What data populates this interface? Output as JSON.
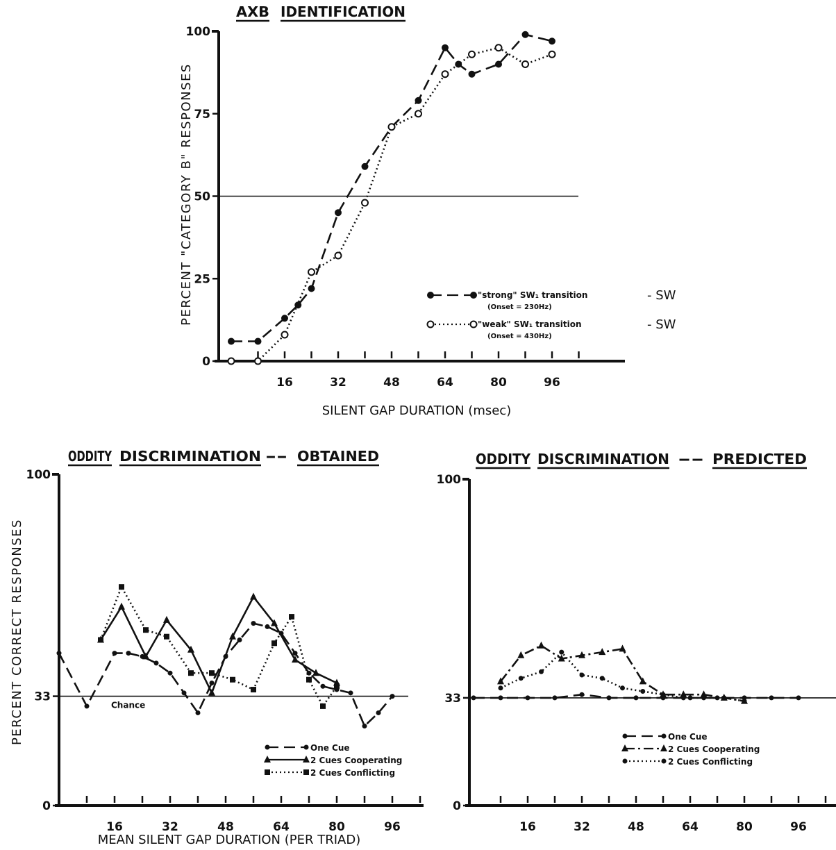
{
  "chart_data": [
    {
      "id": "top",
      "type": "line",
      "title_words": [
        "AXB",
        "IDENTIFICATION"
      ],
      "xlabel": "SILENT GAP DURATION (msec)",
      "ylabel": "PERCENT \"CATEGORY B\" RESPONSES",
      "xlim": [
        0,
        110
      ],
      "ylim": [
        0,
        100
      ],
      "x_ticks": [
        16,
        32,
        48,
        64,
        80,
        96
      ],
      "y_ticks": [
        0,
        25,
        50,
        75,
        100
      ],
      "reference_line": 50,
      "series": [
        {
          "name": "\"strong\" SW₁ transition - SW",
          "name_main": "\"strong\" SW₁ transition",
          "name_suffix": "- SW",
          "sub": "(Onset = 230Hz)",
          "style": "dashed",
          "marker": "filled-circle",
          "x": [
            0,
            8,
            16,
            20,
            24,
            32,
            40,
            48,
            56,
            64,
            68,
            72,
            80,
            88,
            96
          ],
          "y": [
            6,
            6,
            13,
            17,
            22,
            45,
            59,
            71,
            79,
            95,
            90,
            87,
            90,
            99,
            97
          ]
        },
        {
          "name": "\"weak\" SW₁ transition - SW",
          "name_main": "\"weak\" SW₁ transition",
          "name_suffix": "- SW",
          "sub": "(Onset = 430Hz)",
          "style": "dotted",
          "marker": "open-circle",
          "x": [
            0,
            8,
            16,
            24,
            32,
            40,
            48,
            56,
            64,
            72,
            80,
            88,
            96
          ],
          "y": [
            0,
            0,
            8,
            27,
            32,
            48,
            71,
            75,
            87,
            93,
            95,
            90,
            93
          ]
        }
      ]
    },
    {
      "id": "bottom-left",
      "type": "line",
      "title_words": [
        "ODDITY",
        "DISCRIMINATION",
        "--",
        "OBTAINED"
      ],
      "xlabel": "MEAN SILENT GAP DURATION (PER TRIAD)",
      "ylabel": "PERCENT CORRECT RESPONSES",
      "xlim": [
        0,
        110
      ],
      "ylim": [
        0,
        100
      ],
      "x_ticks": [
        16,
        32,
        48,
        64,
        80,
        96
      ],
      "y_ticks": [
        0,
        33,
        100
      ],
      "reference_line": 33,
      "reference_label": "Chance",
      "series": [
        {
          "name": "One Cue",
          "style": "dashed",
          "marker": "dot",
          "x": [
            0,
            8,
            16,
            20,
            24,
            28,
            32,
            36,
            40,
            44,
            48,
            52,
            56,
            60,
            64,
            68,
            72,
            76,
            80,
            84,
            88,
            92,
            96
          ],
          "y": [
            46,
            30,
            46,
            46,
            45,
            43,
            40,
            34,
            28,
            37,
            45,
            50,
            55,
            54,
            52,
            46,
            40,
            36,
            35,
            34,
            24,
            28,
            33
          ]
        },
        {
          "name": "2 Cues Cooperating",
          "style": "solid",
          "marker": "triangle",
          "x": [
            12,
            18,
            25,
            31,
            38,
            44,
            50,
            56,
            62,
            68,
            74,
            80
          ],
          "y": [
            50,
            60,
            45,
            56,
            47,
            34,
            51,
            63,
            55,
            44,
            40,
            37
          ]
        },
        {
          "name": "2 Cues Conflicting",
          "style": "dotted",
          "marker": "square",
          "x": [
            12,
            18,
            25,
            31,
            38,
            44,
            50,
            56,
            62,
            67,
            72,
            76,
            80
          ],
          "y": [
            50,
            66,
            53,
            51,
            40,
            40,
            38,
            35,
            49,
            57,
            38,
            30,
            36
          ]
        }
      ]
    },
    {
      "id": "bottom-right",
      "type": "line",
      "title_words": [
        "ODDITY",
        "DISCRIMINATION",
        "--",
        "PREDICTED"
      ],
      "xlabel": "",
      "ylabel": "",
      "xlim": [
        0,
        110
      ],
      "ylim": [
        0,
        100
      ],
      "x_ticks": [
        16,
        32,
        48,
        64,
        80,
        96
      ],
      "y_ticks": [
        0,
        33,
        100
      ],
      "reference_line": 33,
      "series": [
        {
          "name": "One Cue",
          "style": "dashed",
          "marker": "dot",
          "x": [
            0,
            8,
            16,
            24,
            32,
            40,
            48,
            56,
            64,
            72,
            80,
            88,
            96
          ],
          "y": [
            33,
            33,
            33,
            33,
            34,
            33,
            33,
            33,
            33,
            33,
            33,
            33,
            33
          ]
        },
        {
          "name": "2 Cues Cooperating",
          "style": "dashdot",
          "marker": "triangle",
          "x": [
            8,
            14,
            20,
            26,
            32,
            38,
            44,
            50,
            56,
            62,
            68,
            74,
            80
          ],
          "y": [
            38,
            46,
            49,
            45,
            46,
            47,
            48,
            38,
            34,
            34,
            34,
            33,
            32
          ]
        },
        {
          "name": "2 Cues Conflicting",
          "style": "dotted",
          "marker": "dot",
          "x": [
            8,
            14,
            20,
            26,
            32,
            38,
            44,
            50,
            56,
            62,
            68,
            74,
            80
          ],
          "y": [
            36,
            39,
            41,
            47,
            40,
            39,
            36,
            35,
            34,
            33,
            33,
            33,
            32
          ]
        }
      ]
    }
  ]
}
